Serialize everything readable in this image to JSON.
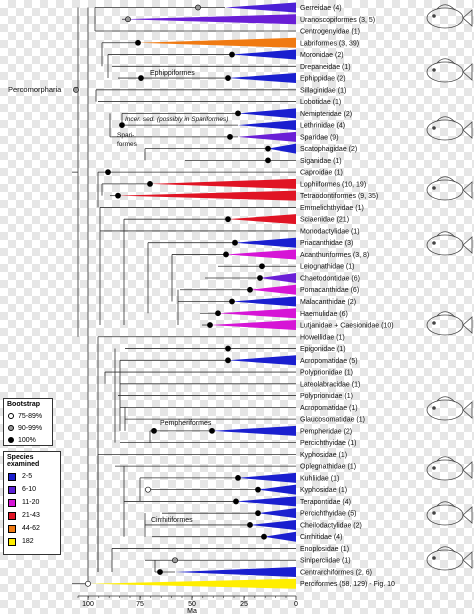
{
  "taxa": [
    {
      "label": "Gerreidae (4)",
      "color": "#4b1fd6"
    },
    {
      "label": "Uranoscopiformes (3, 5)",
      "color": "#6a1fd6"
    },
    {
      "label": "Centrogenyidae (1)",
      "color": null
    },
    {
      "label": "Labriformes (3, 39)",
      "color": "#f07a12"
    },
    {
      "label": "Moronidae (2)",
      "color": "#1a1fcf"
    },
    {
      "label": "Drepaneidae (1)",
      "color": null
    },
    {
      "label": "Ephippidae (2)",
      "color": "#1a1fcf"
    },
    {
      "label": "Sillaginidae (1)",
      "color": null
    },
    {
      "label": "Lobotidae (1)",
      "color": null
    },
    {
      "label": "Nemipteridae (2)",
      "color": "#1a1fcf"
    },
    {
      "label": "Lethrinidae (4)",
      "color": "#1a1fcf"
    },
    {
      "label": "Sparidae (9)",
      "color": "#6a1fd6"
    },
    {
      "label": "Scatophagidae (2)",
      "color": "#1a1fcf"
    },
    {
      "label": "Siganidae (1)",
      "color": null
    },
    {
      "label": "Caproidae (1)",
      "color": null
    },
    {
      "label": "Lophiiformes (10, 19)",
      "color": "#e01424"
    },
    {
      "label": "Tetraodontiformes (9, 35)",
      "color": "#e01424"
    },
    {
      "label": "Emmelichthyidae (1)",
      "color": null
    },
    {
      "label": "Sciaenidae (21)",
      "color": "#e01424"
    },
    {
      "label": "Monodactylidae (1)",
      "color": null
    },
    {
      "label": "Priacanthidae (3)",
      "color": "#1a1fcf"
    },
    {
      "label": "Acanthuriformes (3, 8)",
      "color": "#d615d6"
    },
    {
      "label": "Leiognathidae (1)",
      "color": null
    },
    {
      "label": "Chaetodontidae (6)",
      "color": "#6a1fd6"
    },
    {
      "label": "Pomacanthidae (6)",
      "color": "#d615d6"
    },
    {
      "label": "Malacanthidae (2)",
      "color": "#1a1fcf"
    },
    {
      "label": "Haemulidae (6)",
      "color": "#d615d6"
    },
    {
      "label": "Lutjanidae + Caesionidae (10)",
      "color": "#d615d6"
    },
    {
      "label": "Howellidae (1)",
      "color": null
    },
    {
      "label": "Epigonidae (1)",
      "color": null
    },
    {
      "label": "Acropomatidae (5)",
      "color": "#1a1fcf"
    },
    {
      "label": "Polyprionidae (1)",
      "color": null
    },
    {
      "label": "Lateolabracidae (1)",
      "color": null
    },
    {
      "label": "Polyprionidae (1)",
      "color": null
    },
    {
      "label": "Acropomatidae (1)",
      "color": null
    },
    {
      "label": "Glaucosomatidae (1)",
      "color": null
    },
    {
      "label": "Pempheridae (2)",
      "color": "#1a1fcf"
    },
    {
      "label": "Percichthyidae (1)",
      "color": null
    },
    {
      "label": "Kyphosidae (1)",
      "color": null
    },
    {
      "label": "Oplegnathidae (1)",
      "color": null
    },
    {
      "label": "Kuhliidae (1)",
      "color": "#1a1fcf"
    },
    {
      "label": "Kyphosidae (1)",
      "color": "#1a1fcf"
    },
    {
      "label": "Terapontidae (4)",
      "color": "#1a1fcf"
    },
    {
      "label": "Percichthyidae (5)",
      "color": "#1a1fcf"
    },
    {
      "label": "Cheilodactylidae (2)",
      "color": "#1a1fcf"
    },
    {
      "label": "Cirrhitidae (4)",
      "color": "#1a1fcf"
    },
    {
      "label": "Enoplosidae (1)",
      "color": null
    },
    {
      "label": "Siniperciidae (1)",
      "color": null
    },
    {
      "label": "Centrarchiformes (2, 6)",
      "color": "#1a1fcf"
    },
    {
      "label": "Perciformes (58, 129) - Fig. 10",
      "color": "#ffee00"
    }
  ],
  "clade_labels": {
    "percomorpharia": "Percomorpharia",
    "ephippiformes": "Ephippiformes",
    "incertae": "Incer. sed. (possibly in Spariformes)",
    "spari1": "Spari-",
    "spari2": "formes",
    "pempheriformes": "Pempheriformes",
    "cirrhitiformes": "Cirrhitiformes"
  },
  "axis": {
    "ticks": [
      "100",
      "75",
      "50",
      "25",
      "0"
    ],
    "label": "Ma"
  },
  "bootstrap": {
    "title": "Bootstrap",
    "items": [
      "75-89%",
      "90-99%",
      "100%"
    ]
  },
  "species_legend": {
    "title": "Species examined",
    "items": [
      {
        "label": "2-5",
        "color": "#1a1fcf"
      },
      {
        "label": "6-10",
        "color": "#5a1fd6"
      },
      {
        "label": "11-20",
        "color": "#d615d6"
      },
      {
        "label": "21-43",
        "color": "#e01424"
      },
      {
        "label": "44-62",
        "color": "#f07a12"
      },
      {
        "label": "182",
        "color": "#ffee00"
      }
    ]
  }
}
